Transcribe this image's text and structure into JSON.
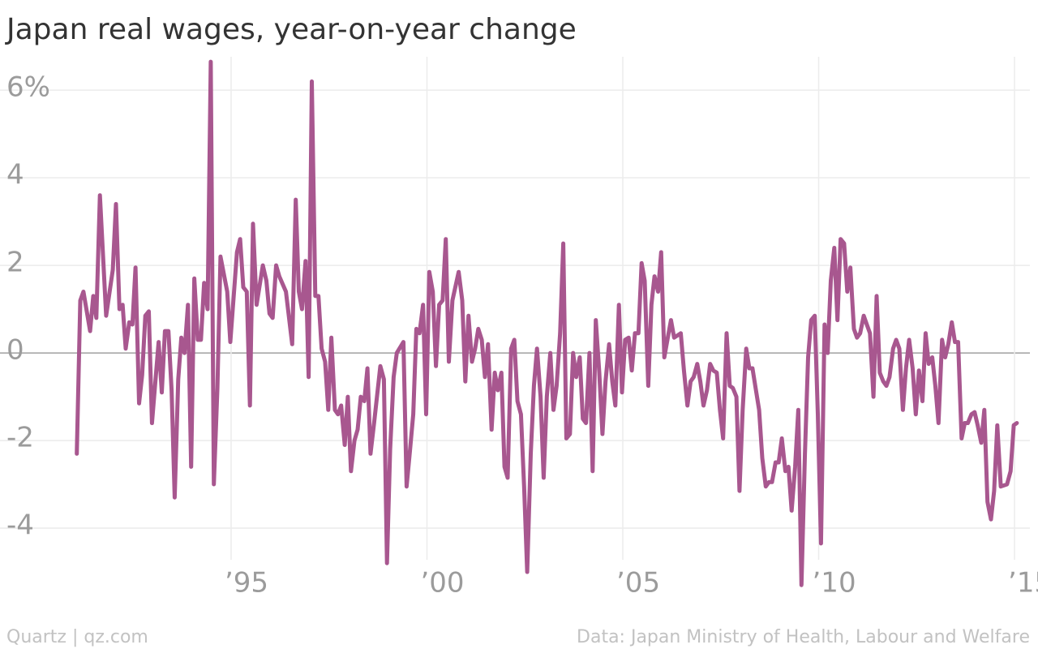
{
  "chart_data": {
    "type": "line",
    "title": "Japan real wages, year-on-year change",
    "source_left": "Quartz | qz.com",
    "source_right": "Data: Japan Ministry of Health, Labour and Welfare",
    "color": "#a8578f",
    "grid": true,
    "xlim": [
      1989.1,
      2015.6
    ],
    "ylim": [
      -5.5,
      6.8
    ],
    "xticks": [
      {
        "value": 1995,
        "label": "’95"
      },
      {
        "value": 2000,
        "label": "’00"
      },
      {
        "value": 2005,
        "label": "’05"
      },
      {
        "value": 2010,
        "label": "’10"
      },
      {
        "value": 2015,
        "label": "’15"
      }
    ],
    "yticks": [
      {
        "value": 6,
        "label": "6%"
      },
      4,
      2,
      0,
      -2,
      -4
    ],
    "x": [
      1991.06,
      1991.15,
      1991.23,
      1991.4,
      1991.48,
      1991.56,
      1991.65,
      1991.81,
      1991.98,
      1992.06,
      1992.15,
      1992.23,
      1992.31,
      1992.4,
      1992.48,
      1992.56,
      1992.65,
      1992.73,
      1992.81,
      1992.9,
      1992.98,
      1993.15,
      1993.23,
      1993.31,
      1993.4,
      1993.48,
      1993.56,
      1993.65,
      1993.73,
      1993.81,
      1993.9,
      1993.98,
      1994.06,
      1994.15,
      1994.23,
      1994.31,
      1994.4,
      1994.48,
      1994.56,
      1994.65,
      1994.73,
      1994.9,
      1994.98,
      1995.15,
      1995.23,
      1995.31,
      1995.4,
      1995.48,
      1995.56,
      1995.65,
      1995.81,
      1995.9,
      1995.98,
      1996.06,
      1996.15,
      1996.23,
      1996.4,
      1996.56,
      1996.65,
      1996.73,
      1996.81,
      1996.9,
      1996.98,
      1997.06,
      1997.15,
      1997.23,
      1997.31,
      1997.4,
      1997.48,
      1997.56,
      1997.65,
      1997.73,
      1997.81,
      1997.9,
      1997.98,
      1998.06,
      1998.15,
      1998.23,
      1998.31,
      1998.4,
      1998.48,
      1998.56,
      1998.65,
      1998.81,
      1998.9,
      1998.98,
      1999.06,
      1999.15,
      1999.23,
      1999.4,
      1999.48,
      1999.56,
      1999.65,
      1999.73,
      1999.81,
      1999.9,
      1999.98,
      2000.06,
      2000.15,
      2000.23,
      2000.31,
      2000.4,
      2000.48,
      2000.56,
      2000.65,
      2000.81,
      2000.9,
      2000.98,
      2001.06,
      2001.15,
      2001.23,
      2001.31,
      2001.4,
      2001.48,
      2001.56,
      2001.65,
      2001.73,
      2001.81,
      2001.9,
      2001.98,
      2002.06,
      2002.15,
      2002.23,
      2002.31,
      2002.4,
      2002.48,
      2002.56,
      2002.65,
      2002.73,
      2002.81,
      2002.9,
      2002.98,
      2003.06,
      2003.15,
      2003.23,
      2003.31,
      2003.4,
      2003.48,
      2003.56,
      2003.65,
      2003.73,
      2003.81,
      2003.9,
      2003.98,
      2004.06,
      2004.15,
      2004.23,
      2004.31,
      2004.4,
      2004.48,
      2004.56,
      2004.65,
      2004.73,
      2004.81,
      2004.9,
      2004.98,
      2005.06,
      2005.15,
      2005.23,
      2005.31,
      2005.4,
      2005.48,
      2005.56,
      2005.65,
      2005.73,
      2005.81,
      2005.9,
      2005.98,
      2006.06,
      2006.15,
      2006.23,
      2006.31,
      2006.48,
      2006.56,
      2006.65,
      2006.73,
      2006.81,
      2006.9,
      2006.98,
      2007.06,
      2007.15,
      2007.23,
      2007.31,
      2007.4,
      2007.48,
      2007.56,
      2007.65,
      2007.73,
      2007.81,
      2007.9,
      2007.98,
      2008.06,
      2008.15,
      2008.23,
      2008.31,
      2008.4,
      2008.48,
      2008.56,
      2008.65,
      2008.73,
      2008.81,
      2008.9,
      2008.98,
      2009.06,
      2009.15,
      2009.23,
      2009.31,
      2009.4,
      2009.48,
      2009.56,
      2009.65,
      2009.73,
      2009.81,
      2009.9,
      2009.98,
      2010.06,
      2010.15,
      2010.23,
      2010.31,
      2010.4,
      2010.48,
      2010.56,
      2010.65,
      2010.73,
      2010.81,
      2010.9,
      2010.98,
      2011.06,
      2011.15,
      2011.23,
      2011.31,
      2011.4,
      2011.48,
      2011.56,
      2011.65,
      2011.73,
      2011.81,
      2011.9,
      2011.98,
      2012.06,
      2012.15,
      2012.23,
      2012.31,
      2012.4,
      2012.48,
      2012.56,
      2012.65,
      2012.73,
      2012.81,
      2012.9,
      2012.98,
      2013.06,
      2013.15,
      2013.23,
      2013.31,
      2013.4,
      2013.48,
      2013.56,
      2013.65,
      2013.73,
      2013.81,
      2013.9,
      2013.98,
      2014.06,
      2014.15,
      2014.23,
      2014.31,
      2014.4,
      2014.48,
      2014.56,
      2014.65,
      2014.81,
      2014.9,
      2014.98,
      2015.06
    ],
    "values": [
      -2.3,
      1.2,
      1.4,
      0.5,
      1.3,
      0.8,
      3.6,
      0.85,
      1.9,
      3.4,
      1.0,
      1.1,
      0.1,
      0.7,
      0.65,
      1.95,
      -1.15,
      -0.5,
      0.85,
      0.95,
      -1.6,
      0.25,
      -0.9,
      0.5,
      0.5,
      -0.85,
      -3.3,
      -0.6,
      0.35,
      0,
      1.1,
      -2.6,
      1.7,
      0.3,
      0.3,
      1.6,
      1.0,
      6.65,
      -3.0,
      -0.8,
      2.2,
      1.4,
      0.25,
      2.3,
      2.6,
      1.5,
      1.4,
      -1.2,
      2.95,
      1.1,
      2.0,
      1.65,
      0.9,
      0.8,
      2.0,
      1.75,
      1.4,
      0.2,
      3.5,
      1.4,
      1.0,
      2.1,
      -0.55,
      6.2,
      1.3,
      1.3,
      0.1,
      -0.2,
      -1.3,
      0.35,
      -1.3,
      -1.4,
      -1.2,
      -2.1,
      -1.0,
      -2.7,
      -2.0,
      -1.75,
      -1.0,
      -1.1,
      -0.35,
      -2.3,
      -1.6,
      -0.3,
      -0.6,
      -4.8,
      -2.2,
      -0.55,
      0,
      0.25,
      -3.05,
      -2.3,
      -1.4,
      0.55,
      0.45,
      1.1,
      -1.4,
      1.85,
      1.4,
      -0.3,
      1.1,
      1.2,
      2.6,
      -0.2,
      1.2,
      1.85,
      1.2,
      -0.65,
      0.85,
      -0.2,
      0.1,
      0.55,
      0.3,
      -0.55,
      0.2,
      -1.75,
      -0.45,
      -0.85,
      -0.45,
      -2.6,
      -2.85,
      0.1,
      0.3,
      -1.1,
      -1.4,
      -3.05,
      -5.0,
      -2.3,
      -0.75,
      0.1,
      -1.0,
      -2.85,
      -1.0,
      0,
      -1.3,
      -0.75,
      0.45,
      2.5,
      -1.95,
      -1.85,
      0,
      -0.55,
      -0.1,
      -1.5,
      -1.6,
      0,
      -2.7,
      0.75,
      -0.45,
      -1.85,
      -0.65,
      0.2,
      -0.65,
      -1.2,
      1.1,
      -0.9,
      0.3,
      0.35,
      -0.4,
      0.45,
      0.45,
      2.05,
      1.65,
      -0.75,
      1.1,
      1.75,
      1.4,
      2.3,
      -0.1,
      0.35,
      0.75,
      0.35,
      0.45,
      -0.4,
      -1.2,
      -0.65,
      -0.55,
      -0.25,
      -0.65,
      -1.2,
      -0.85,
      -0.25,
      -0.4,
      -0.45,
      -1.3,
      -1.95,
      0.45,
      -0.75,
      -0.8,
      -1.0,
      -3.15,
      -1.3,
      0.1,
      -0.35,
      -0.35,
      -0.85,
      -1.3,
      -2.4,
      -3.05,
      -2.95,
      -2.95,
      -2.5,
      -2.5,
      -1.95,
      -2.7,
      -2.6,
      -3.6,
      -2.6,
      -1.3,
      -5.3,
      -2.3,
      -0.1,
      0.75,
      0.85,
      -1.4,
      -4.35,
      0.65,
      0,
      1.65,
      2.4,
      0.75,
      2.6,
      2.5,
      1.4,
      1.95,
      0.55,
      0.35,
      0.45,
      0.85,
      0.65,
      0.45,
      -1.0,
      1.3,
      -0.45,
      -0.65,
      -0.75,
      -0.55,
      0.1,
      0.3,
      0.1,
      -1.3,
      -0.35,
      0.3,
      -0.35,
      -1.4,
      -0.4,
      -1.1,
      0.45,
      -0.25,
      -0.1,
      -0.75,
      -1.6,
      0.3,
      -0.1,
      0.2,
      0.7,
      0.25,
      0.25,
      -1.95,
      -1.6,
      -1.6,
      -1.4,
      -1.35,
      -1.65,
      -2.05,
      -1.3,
      -3.4,
      -3.8,
      -3.15,
      -1.65,
      -3.05,
      -3.0,
      -2.7,
      -1.65,
      -1.6
    ]
  }
}
